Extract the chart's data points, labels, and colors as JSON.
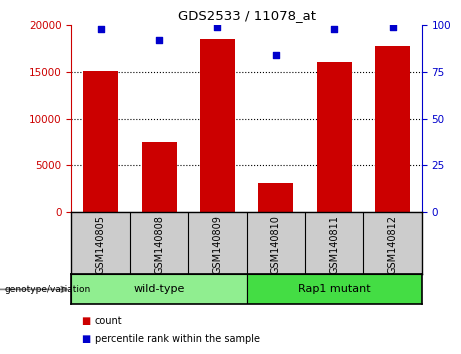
{
  "title": "GDS2533 / 11078_at",
  "samples": [
    "GSM140805",
    "GSM140808",
    "GSM140809",
    "GSM140810",
    "GSM140811",
    "GSM140812"
  ],
  "counts": [
    15100,
    7500,
    18500,
    3100,
    16000,
    17700
  ],
  "percentiles": [
    98,
    92,
    99,
    84,
    98,
    99
  ],
  "groups": [
    {
      "label": "wild-type",
      "indices": [
        0,
        1,
        2
      ],
      "color": "#90EE90"
    },
    {
      "label": "Rap1 mutant",
      "indices": [
        3,
        4,
        5
      ],
      "color": "#44DD44"
    }
  ],
  "bar_color": "#CC0000",
  "dot_color": "#0000CC",
  "ylim_left": [
    0,
    20000
  ],
  "ylim_right": [
    0,
    100
  ],
  "yticks_left": [
    0,
    5000,
    10000,
    15000,
    20000
  ],
  "yticks_right": [
    0,
    25,
    50,
    75,
    100
  ],
  "bg_color": "#CCCCCC",
  "genotype_label": "genotype/variation",
  "legend_count_label": "count",
  "legend_pct_label": "percentile rank within the sample"
}
